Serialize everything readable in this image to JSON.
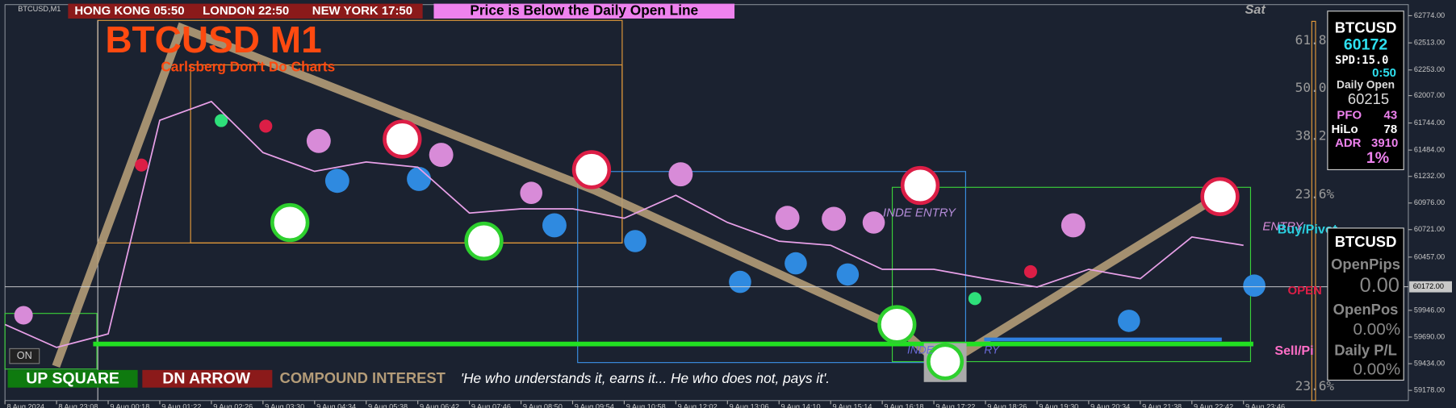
{
  "chart_data": {
    "type": "line",
    "categories": [
      "8 Aug 2024",
      "8 Aug 23:08",
      "9 Aug 00:18",
      "9 Aug 01:22",
      "9 Aug 02:26",
      "9 Aug 03:30",
      "9 Aug 04:34",
      "9 Aug 05:38",
      "9 Aug 06:42",
      "9 Aug 07:46",
      "9 Aug 08:50",
      "9 Aug 09:54",
      "9 Aug 10:58",
      "9 Aug 12:02",
      "9 Aug 13:06",
      "9 Aug 14:10",
      "9 Aug 15:14",
      "9 Aug 16:18",
      "9 Aug 17:22",
      "9 Aug 18:26",
      "9 Aug 19:30",
      "9 Aug 20:34",
      "9 Aug 21:38",
      "9 Aug 22:42",
      "9 Aug 23:46"
    ],
    "series": [
      {
        "name": "BTCUSD,M1",
        "color": "#e8a0e8",
        "values": [
          59810,
          59590,
          59720,
          61770,
          61950,
          61460,
          61280,
          61370,
          61320,
          60880,
          60920,
          60920,
          60830,
          61050,
          60790,
          60610,
          60570,
          60340,
          60340,
          60250,
          60170,
          60340,
          60250,
          60650,
          60570
        ]
      }
    ],
    "ylim": [
      59080,
      62880
    ],
    "yticks": [
      {
        "value": 62774,
        "label": "62774.00"
      },
      {
        "value": 62513,
        "label": "62513.00"
      },
      {
        "value": 62253,
        "label": "62253.00"
      },
      {
        "value": 62007,
        "label": "62007.00"
      },
      {
        "value": 61744,
        "label": "61744.00"
      },
      {
        "value": 61484,
        "label": "61484.00"
      },
      {
        "value": 61232,
        "label": "61232.00"
      },
      {
        "value": 60976,
        "label": "60976.00"
      },
      {
        "value": 60721,
        "label": "60721.00"
      },
      {
        "value": 60457,
        "label": "60457.00"
      },
      {
        "value": 59946,
        "label": "59946.00"
      },
      {
        "value": 59690,
        "label": "59690.00"
      },
      {
        "value": 59434,
        "label": "59434.00"
      },
      {
        "value": 59178,
        "label": "59178.00"
      }
    ],
    "current_price": {
      "value": 60172,
      "label": "60172.00"
    },
    "grid": false
  },
  "header": {
    "symbol": "BTCUSD,M1",
    "hong_kong": "HONG KONG 05:50",
    "london": "LONDON  22:50",
    "new_york": "NEW YORK 17:50",
    "notice": "Price is Below the Daily Open Line",
    "day": "Sat",
    "title": "BTCUSD M1",
    "subtitle": "Carlsberg Don't Do Charts"
  },
  "fib": {
    "f618": "61.8",
    "f500": "50.0",
    "f382": "38.2",
    "f236": "23.6%",
    "f236b": "23.6%"
  },
  "labels": {
    "entry1": "INDE ENTRY",
    "entry2": "ENTRY",
    "buy": "Buy/Pivot",
    "open": "OPEN",
    "sell": "Sell/Pi",
    "on": "ON",
    "entry3": "INDE",
    "entry4": "RY"
  },
  "panel": {
    "symbol": "BTCUSD",
    "price": "60172",
    "spread": "SPD:15.0",
    "timer": "0:50",
    "daily_open_label": "Daily Open",
    "daily_open": "60215",
    "pfo_label": "PFO",
    "pfo": "43",
    "hilo_label": "HiLo",
    "hilo": "78",
    "adr_label": "ADR",
    "adr": "3910",
    "pct": "1%"
  },
  "panel2": {
    "symbol": "BTCUSD",
    "open_pips_label": "OpenPips",
    "open_pips": "0.00",
    "open_pos_label": "OpenPos",
    "open_pos": "0.00%",
    "daily_pl_label": "Daily P/L",
    "daily_pl": "0.00%"
  },
  "footer": {
    "up": "UP SQUARE",
    "dn": "DN ARROW",
    "compound": "COMPOUND INTEREST",
    "quote": "'He who understands it, earns it... He who does not, pays it'."
  }
}
